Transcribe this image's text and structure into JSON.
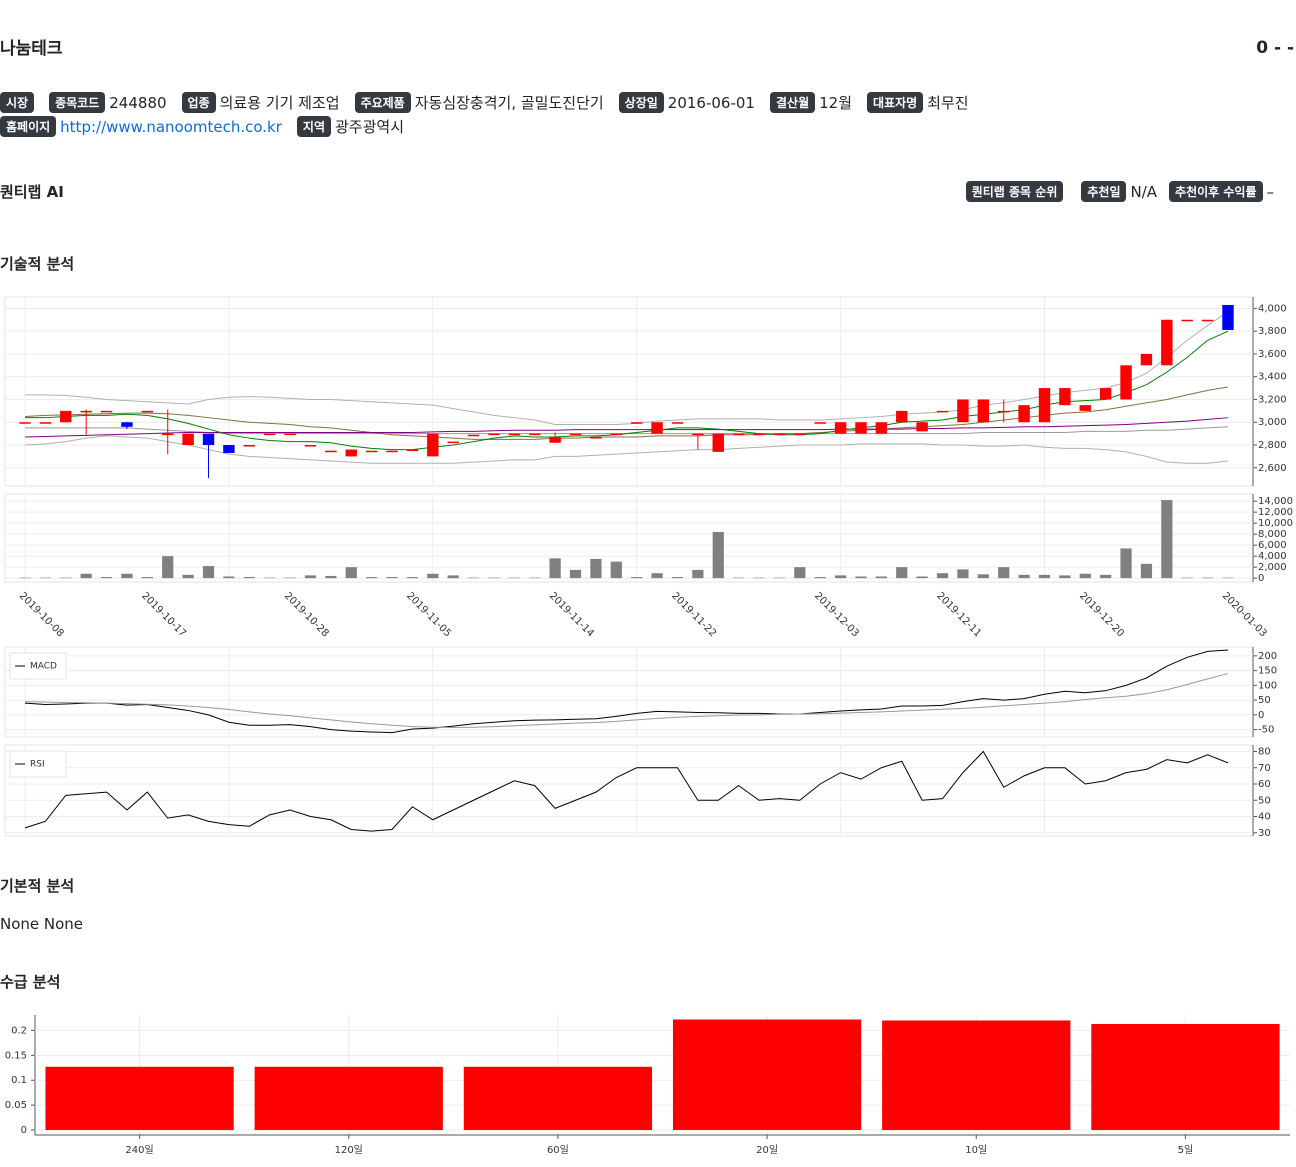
{
  "header": {
    "title": "나눔테크",
    "score": "0 - -"
  },
  "info": {
    "rows": [
      [
        {
          "label": "시장"
        },
        {
          "label": "종목코드",
          "value": "244880"
        },
        {
          "label": "업종",
          "value": "의료용 기기 제조업"
        },
        {
          "label": "주요제품",
          "value": "자동심장충격기, 골밀도진단기"
        },
        {
          "label": "상장일",
          "value": "2016-06-01"
        },
        {
          "label": "결산월",
          "value": "12월"
        },
        {
          "label": "대표자명",
          "value": "최무진"
        }
      ],
      [
        {
          "label": "홈페이지",
          "value": "http://www.nanoomtech.co.kr",
          "link": true
        },
        {
          "label": "지역",
          "value": "광주광역시"
        }
      ]
    ]
  },
  "quant": {
    "title": "퀀티랩 AI",
    "items": [
      {
        "label": "퀀티랩 종목 순위"
      },
      {
        "label": "추천일",
        "value": "N/A"
      },
      {
        "label": "추천이후 수익률",
        "value": "–"
      }
    ]
  },
  "sections": {
    "technical": "기술적 분석",
    "fundamental": {
      "title": "기본적 분석",
      "text": "None None"
    },
    "supply": "수급 분석"
  },
  "chart_data": [
    {
      "type": "candlestick",
      "up_color": "#ff0000",
      "down_color": "#0000ff",
      "grid": true,
      "open": [
        3000,
        3000,
        3000,
        3100,
        3100,
        3000,
        3100,
        2900,
        2800,
        2900,
        2800,
        2800,
        2900,
        2900,
        2800,
        2750,
        2700,
        2750,
        2750,
        2760,
        2700,
        2830,
        2890,
        2900,
        2900,
        2900,
        2820,
        2900,
        2870,
        2900,
        3000,
        2900,
        3000,
        2900,
        2740,
        2900,
        2900,
        2900,
        2900,
        3000,
        2900,
        2900,
        2900,
        3000,
        2920,
        3100,
        3000,
        3000,
        3100,
        3000,
        3000,
        3150,
        3100,
        3200,
        3200,
        3500,
        3500,
        3900,
        3900,
        4030
      ],
      "high": [
        3000,
        3000,
        3100,
        3110,
        3100,
        3000,
        3100,
        3110,
        2900,
        2900,
        2800,
        2800,
        2900,
        2900,
        2800,
        2750,
        2760,
        2750,
        2750,
        2760,
        2900,
        2830,
        2890,
        2900,
        2900,
        2900,
        2910,
        2900,
        2870,
        2900,
        3000,
        3000,
        3000,
        2900,
        2900,
        2900,
        2900,
        2900,
        2900,
        3000,
        3000,
        3000,
        3000,
        3100,
        3000,
        3100,
        3200,
        3200,
        3200,
        3150,
        3300,
        3300,
        3150,
        3300,
        3500,
        3600,
        3900,
        3900,
        3900,
        4030
      ],
      "low": [
        3000,
        3000,
        3000,
        2890,
        3100,
        2940,
        3100,
        2720,
        2800,
        2510,
        2730,
        2800,
        2900,
        2900,
        2800,
        2750,
        2700,
        2750,
        2750,
        2760,
        2700,
        2830,
        2890,
        2900,
        2900,
        2900,
        2820,
        2900,
        2870,
        2900,
        3000,
        2900,
        3000,
        2760,
        2740,
        2900,
        2900,
        2900,
        2900,
        3000,
        2900,
        2900,
        2900,
        3000,
        2920,
        3100,
        3000,
        3000,
        3000,
        3000,
        3000,
        3150,
        3100,
        3200,
        3200,
        3500,
        3500,
        3900,
        3900,
        3810
      ],
      "close": [
        3000,
        3000,
        3100,
        3100,
        3100,
        2960,
        3100,
        2900,
        2900,
        2800,
        2730,
        2800,
        2900,
        2900,
        2800,
        2750,
        2760,
        2750,
        2750,
        2760,
        2900,
        2830,
        2890,
        2900,
        2900,
        2900,
        2870,
        2900,
        2870,
        2900,
        3000,
        3000,
        3000,
        2900,
        2900,
        2900,
        2900,
        2900,
        2900,
        3000,
        3000,
        3000,
        3000,
        3100,
        3000,
        3100,
        3200,
        3200,
        3100,
        3150,
        3300,
        3300,
        3150,
        3300,
        3500,
        3600,
        3900,
        3900,
        3900,
        3810
      ],
      "lines": [
        {
          "color": "#b0b0b0",
          "values": [
            3240,
            3240,
            3235,
            3220,
            3200,
            3190,
            3180,
            3170,
            3160,
            3200,
            3220,
            3225,
            3220,
            3210,
            3200,
            3200,
            3190,
            3180,
            3170,
            3160,
            3150,
            3120,
            3090,
            3060,
            3040,
            3020,
            2980,
            2980,
            2980,
            2980,
            2990,
            3010,
            3020,
            3030,
            3030,
            3030,
            3030,
            3020,
            3020,
            3020,
            3030,
            3040,
            3050,
            3070,
            3080,
            3090,
            3110,
            3150,
            3170,
            3200,
            3230,
            3260,
            3280,
            3300,
            3350,
            3430,
            3570,
            3720,
            3850,
            3970
          ]
        },
        {
          "color": "#b0b0b0",
          "values": [
            2800,
            2810,
            2830,
            2860,
            2880,
            2870,
            2860,
            2830,
            2800,
            2760,
            2720,
            2700,
            2690,
            2680,
            2670,
            2660,
            2650,
            2640,
            2640,
            2640,
            2640,
            2640,
            2650,
            2660,
            2670,
            2670,
            2700,
            2700,
            2710,
            2720,
            2730,
            2740,
            2750,
            2760,
            2760,
            2770,
            2780,
            2790,
            2800,
            2800,
            2800,
            2810,
            2810,
            2810,
            2810,
            2800,
            2800,
            2790,
            2790,
            2800,
            2780,
            2770,
            2770,
            2760,
            2740,
            2700,
            2650,
            2640,
            2640,
            2660
          ]
        },
        {
          "color": "#999999",
          "values": [
            2950,
            2950,
            2950,
            2950,
            2950,
            2950,
            2940,
            2930,
            2920,
            2910,
            2900,
            2900,
            2900,
            2900,
            2900,
            2900,
            2900,
            2900,
            2900,
            2900,
            2900,
            2900,
            2900,
            2900,
            2900,
            2900,
            2900,
            2900,
            2900,
            2900,
            2900,
            2900,
            2900,
            2900,
            2900,
            2900,
            2900,
            2900,
            2900,
            2900,
            2900,
            2900,
            2900,
            2900,
            2900,
            2900,
            2900,
            2910,
            2910,
            2910,
            2910,
            2910,
            2920,
            2920,
            2920,
            2930,
            2930,
            2940,
            2950,
            2960
          ]
        },
        {
          "color": "#8b6d3f",
          "values": [
            3050,
            3060,
            3065,
            3070,
            3075,
            3080,
            3080,
            3075,
            3060,
            3040,
            3020,
            3000,
            2990,
            2980,
            2960,
            2950,
            2930,
            2910,
            2890,
            2880,
            2870,
            2860,
            2850,
            2850,
            2850,
            2850,
            2860,
            2860,
            2870,
            2870,
            2870,
            2880,
            2880,
            2880,
            2890,
            2890,
            2890,
            2900,
            2900,
            2910,
            2920,
            2930,
            2940,
            2950,
            2960,
            2970,
            2980,
            3000,
            3020,
            3040,
            3060,
            3080,
            3090,
            3110,
            3140,
            3170,
            3200,
            3240,
            3280,
            3310
          ]
        },
        {
          "color": "#800080",
          "values": [
            2870,
            2875,
            2880,
            2885,
            2890,
            2895,
            2900,
            2905,
            2910,
            2910,
            2910,
            2910,
            2910,
            2910,
            2910,
            2910,
            2910,
            2910,
            2910,
            2910,
            2915,
            2920,
            2920,
            2925,
            2930,
            2930,
            2930,
            2935,
            2935,
            2935,
            2935,
            2935,
            2935,
            2935,
            2935,
            2935,
            2935,
            2935,
            2935,
            2935,
            2940,
            2940,
            2940,
            2940,
            2945,
            2945,
            2950,
            2950,
            2955,
            2960,
            2960,
            2965,
            2970,
            2975,
            2980,
            2990,
            3000,
            3010,
            3025,
            3040
          ]
        },
        {
          "color": "#008000",
          "values": [
            3040,
            3040,
            3050,
            3060,
            3060,
            3070,
            3060,
            3030,
            2990,
            2940,
            2890,
            2860,
            2840,
            2830,
            2830,
            2820,
            2790,
            2770,
            2760,
            2760,
            2780,
            2800,
            2830,
            2860,
            2880,
            2870,
            2870,
            2880,
            2880,
            2890,
            2910,
            2930,
            2950,
            2950,
            2940,
            2920,
            2900,
            2890,
            2890,
            2900,
            2930,
            2950,
            2970,
            3000,
            3010,
            3020,
            3050,
            3070,
            3090,
            3110,
            3150,
            3180,
            3190,
            3200,
            3260,
            3330,
            3440,
            3570,
            3720,
            3800
          ]
        }
      ],
      "ylim": [
        2440,
        4100
      ],
      "yticks": [
        {
          "value": 2600,
          "label": "2,600"
        },
        {
          "value": 2800,
          "label": "2,800"
        },
        {
          "value": 3000,
          "label": "3,000"
        },
        {
          "value": 3200,
          "label": "3,200"
        },
        {
          "value": 3400,
          "label": "3,400"
        },
        {
          "value": 3600,
          "label": "3,600"
        },
        {
          "value": 3800,
          "label": "3,800"
        },
        {
          "value": 4000,
          "label": "4,000"
        }
      ]
    },
    {
      "type": "bar",
      "color": "#808080",
      "grid": true,
      "categories": [
        "2019-10-08",
        null,
        null,
        null,
        null,
        null,
        "2019-10-17",
        null,
        null,
        null,
        null,
        null,
        null,
        "2019-10-28",
        null,
        null,
        null,
        null,
        null,
        "2019-11-05",
        null,
        null,
        null,
        null,
        null,
        null,
        "2019-11-14",
        null,
        null,
        null,
        null,
        null,
        "2019-11-22",
        null,
        null,
        null,
        null,
        null,
        null,
        "2019-12-03",
        null,
        null,
        null,
        null,
        null,
        "2019-12-11",
        null,
        null,
        null,
        null,
        null,
        null,
        "2019-12-20",
        null,
        null,
        null,
        null,
        null,
        null,
        "2020-01-03"
      ],
      "values": [
        100,
        100,
        100,
        800,
        200,
        800,
        200,
        4000,
        600,
        2200,
        300,
        200,
        100,
        100,
        500,
        400,
        2000,
        200,
        200,
        200,
        800,
        500,
        100,
        100,
        100,
        100,
        3600,
        1500,
        3500,
        3000,
        200,
        900,
        200,
        1500,
        8400,
        100,
        100,
        100,
        2000,
        200,
        500,
        300,
        300,
        2000,
        300,
        900,
        1600,
        700,
        2000,
        600,
        600,
        500,
        800,
        600,
        5400,
        2600,
        14200,
        100,
        100,
        100
      ],
      "ylim": [
        -700,
        15300
      ],
      "yticks": [
        0,
        {
          "value": 2000,
          "label": "2,000"
        },
        {
          "value": 4000,
          "label": "4,000"
        },
        {
          "value": 6000,
          "label": "6,000"
        },
        {
          "value": 8000,
          "label": "8,000"
        },
        {
          "value": 10000,
          "label": "10,000"
        },
        {
          "value": 12000,
          "label": "12,000"
        },
        {
          "value": 14000,
          "label": "14,000"
        }
      ]
    },
    {
      "type": "line",
      "grid": true,
      "series": [
        {
          "name": "MACD",
          "color": "#000000",
          "values": [
            40,
            35,
            37,
            40,
            40,
            33,
            35,
            25,
            15,
            0,
            -25,
            -35,
            -35,
            -33,
            -40,
            -50,
            -55,
            -58,
            -60,
            -48,
            -45,
            -38,
            -30,
            -25,
            -20,
            -18,
            -17,
            -15,
            -13,
            -5,
            5,
            12,
            10,
            8,
            7,
            5,
            5,
            3,
            3,
            8,
            13,
            17,
            20,
            30,
            30,
            32,
            45,
            55,
            50,
            55,
            70,
            80,
            75,
            82,
            100,
            125,
            165,
            195,
            215,
            220
          ]
        },
        {
          "color": "#999999",
          "values": [
            45,
            43,
            42,
            41,
            40,
            38,
            36,
            34,
            30,
            25,
            18,
            10,
            3,
            -3,
            -10,
            -17,
            -24,
            -30,
            -35,
            -40,
            -42,
            -43,
            -42,
            -40,
            -37,
            -34,
            -31,
            -28,
            -26,
            -22,
            -17,
            -12,
            -8,
            -5,
            -3,
            -1,
            0,
            2,
            3,
            4,
            6,
            8,
            10,
            13,
            16,
            19,
            22,
            26,
            31,
            35,
            40,
            45,
            52,
            58,
            63,
            72,
            85,
            103,
            122,
            140
          ]
        }
      ],
      "ylim": [
        -75,
        230
      ],
      "yticks": [
        -50,
        0,
        50,
        100,
        150,
        200
      ]
    },
    {
      "type": "line",
      "grid": true,
      "series": [
        {
          "name": "RSI",
          "color": "#000000",
          "values": [
            33,
            37,
            53,
            54,
            55,
            44,
            55,
            39,
            41,
            37,
            35,
            34,
            41,
            44,
            40,
            38,
            32,
            31,
            32,
            46,
            38,
            44,
            50,
            56,
            62,
            59,
            45,
            50,
            55,
            64,
            70,
            70,
            70,
            50,
            50,
            59,
            50,
            51,
            50,
            60,
            67,
            63,
            70,
            74,
            50,
            51,
            67,
            80,
            58,
            65,
            70,
            70,
            60,
            62,
            67,
            69,
            75,
            73,
            78,
            73
          ]
        }
      ],
      "ylim": [
        28,
        84
      ],
      "yticks": [
        30,
        40,
        50,
        60,
        70,
        80
      ]
    },
    {
      "type": "bar",
      "color": "#ff0000",
      "grid": true,
      "categories": [
        "240일",
        "120일",
        "60일",
        "20일",
        "10일",
        "5일"
      ],
      "values": [
        0.127,
        0.127,
        0.127,
        0.222,
        0.22,
        0.213
      ],
      "ylim": [
        -0.01,
        0.231
      ],
      "yticks": [
        0,
        0.05,
        0.1,
        0.15,
        0.2
      ]
    }
  ]
}
